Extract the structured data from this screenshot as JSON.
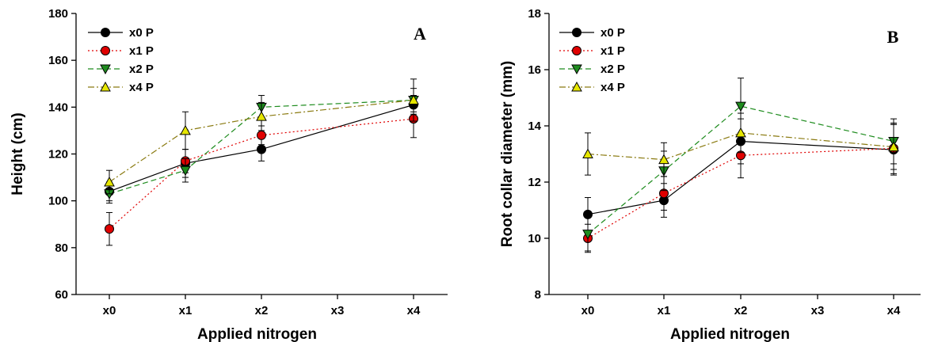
{
  "colors": {
    "x0 P": "#000000",
    "x1 P": "#e00000",
    "x2 P": "#1e8c1e",
    "x4 P": "#e6e600"
  },
  "chart_data": [
    {
      "type": "line",
      "panel_label": "A",
      "xlabel": "Applied nitrogen",
      "ylabel": "Height (cm)",
      "categories": [
        "x0",
        "x1",
        "x2",
        "x3",
        "x4"
      ],
      "x": [
        0,
        1,
        2,
        4
      ],
      "ylim": [
        60,
        180
      ],
      "yticks": [
        60,
        80,
        100,
        120,
        140,
        160,
        180
      ],
      "legend_position": "top-left",
      "series": [
        {
          "name": "x0 P",
          "marker": "circle",
          "line": "solid",
          "values": [
            104,
            116,
            122,
            141
          ],
          "errors": [
            4,
            6,
            5,
            4
          ]
        },
        {
          "name": "x1 P",
          "marker": "circle",
          "line": "dotted",
          "values": [
            88,
            117,
            128,
            135
          ],
          "errors": [
            7,
            5,
            4,
            8
          ]
        },
        {
          "name": "x2 P",
          "marker": "triangle-down",
          "line": "dashed",
          "values": [
            103,
            113,
            140,
            143
          ],
          "errors": [
            4,
            5,
            5,
            5
          ]
        },
        {
          "name": "x4 P",
          "marker": "triangle-up",
          "line": "dashdot",
          "values": [
            108,
            130,
            136,
            143
          ],
          "errors": [
            5,
            8,
            6,
            9
          ]
        }
      ]
    },
    {
      "type": "line",
      "panel_label": "B",
      "xlabel": "Applied nitrogen",
      "ylabel": "Root collar diameter (mm)",
      "categories": [
        "x0",
        "x1",
        "x2",
        "x3",
        "x4"
      ],
      "x": [
        0,
        1,
        2,
        4
      ],
      "ylim": [
        8,
        18
      ],
      "yticks": [
        8,
        10,
        12,
        14,
        16,
        18
      ],
      "legend_position": "top-left",
      "series": [
        {
          "name": "x0 P",
          "marker": "circle",
          "line": "solid",
          "values": [
            10.85,
            11.35,
            13.45,
            13.15
          ],
          "errors": [
            0.6,
            0.6,
            0.8,
            0.9
          ]
        },
        {
          "name": "x1 P",
          "marker": "circle",
          "line": "dotted",
          "values": [
            10.0,
            11.6,
            12.95,
            13.2
          ],
          "errors": [
            0.5,
            0.6,
            0.8,
            0.9
          ]
        },
        {
          "name": "x2 P",
          "marker": "triangle-down",
          "line": "dashed",
          "values": [
            10.15,
            12.4,
            14.7,
            13.45
          ],
          "errors": [
            0.6,
            0.7,
            1.0,
            0.8
          ]
        },
        {
          "name": "x4 P",
          "marker": "triangle-up",
          "line": "dashdot",
          "values": [
            13.0,
            12.8,
            13.75,
            13.25
          ],
          "errors": [
            0.75,
            0.6,
            0.7,
            0.8
          ]
        }
      ]
    }
  ]
}
